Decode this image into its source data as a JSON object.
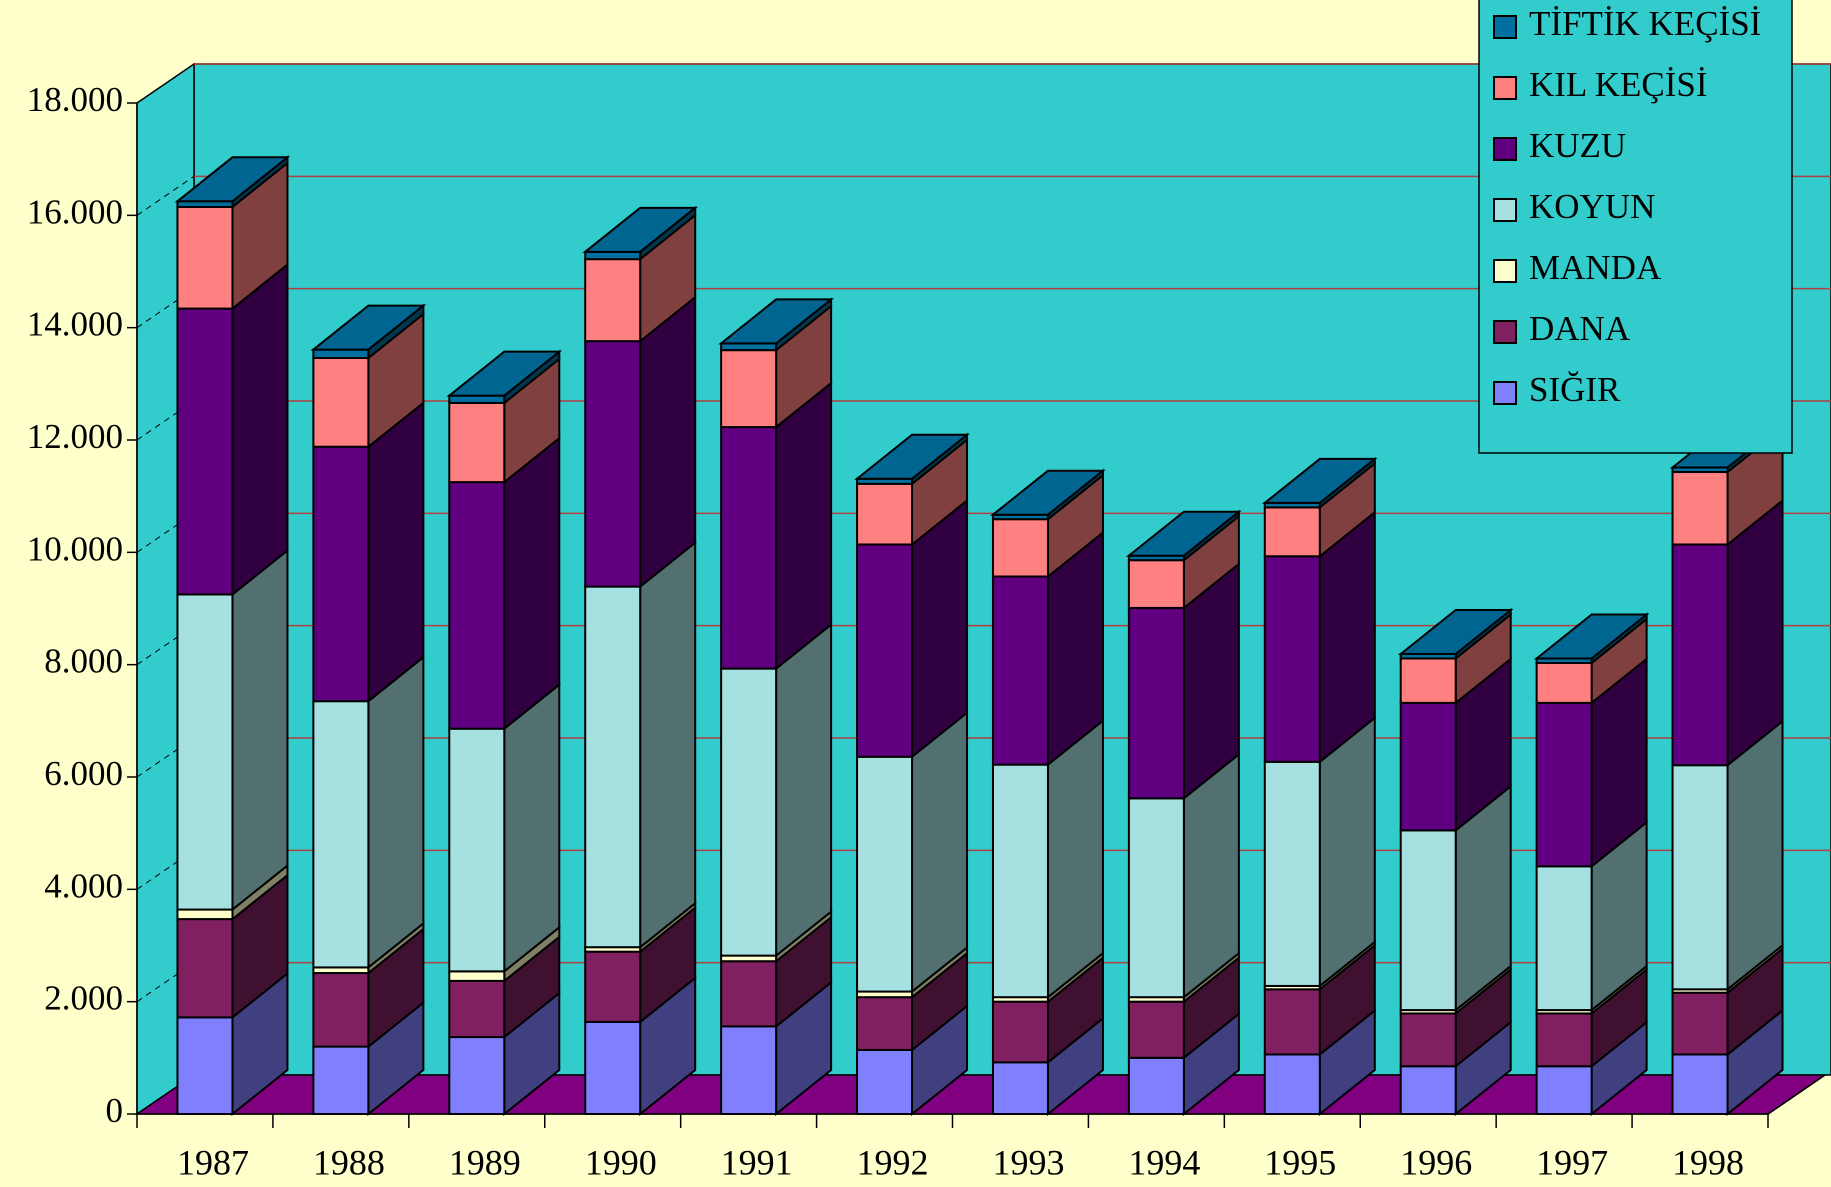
{
  "chart_data": {
    "type": "bar3d_stacked",
    "categories": [
      "1987",
      "1988",
      "1989",
      "1990",
      "1991",
      "1992",
      "1993",
      "1994",
      "1995",
      "1996",
      "1997",
      "1998"
    ],
    "series": [
      {
        "name": "SIĞIR",
        "color": "#8080ff",
        "values": [
          1720,
          1200,
          1370,
          1640,
          1560,
          1140,
          920,
          1000,
          1060,
          850,
          850,
          1060
        ]
      },
      {
        "name": "DANA",
        "color": "#802060",
        "values": [
          1750,
          1310,
          1000,
          1250,
          1160,
          940,
          1080,
          1000,
          1160,
          940,
          940,
          1100
        ]
      },
      {
        "name": "MANDA",
        "color": "#ffffcc",
        "values": [
          170,
          100,
          170,
          80,
          100,
          100,
          80,
          80,
          60,
          60,
          60,
          60
        ]
      },
      {
        "name": "KOYUN",
        "color": "#a6e0e0",
        "values": [
          5610,
          4740,
          4320,
          6420,
          5110,
          4180,
          4140,
          3540,
          3990,
          3200,
          2560,
          3990
        ]
      },
      {
        "name": "KUZU",
        "color": "#600080",
        "values": [
          5090,
          4530,
          4390,
          4370,
          4300,
          3780,
          3350,
          3390,
          3660,
          2270,
          2910,
          3930
        ]
      },
      {
        "name": "KIL KEÇİSİ",
        "color": "#ff8080",
        "values": [
          1810,
          1580,
          1410,
          1460,
          1370,
          1080,
          1020,
          850,
          870,
          790,
          710,
          1290
        ]
      },
      {
        "name": "TİFTİK KEÇİSİ",
        "color": "#0070a0",
        "values": [
          100,
          150,
          130,
          130,
          120,
          90,
          80,
          80,
          80,
          80,
          80,
          80
        ]
      }
    ],
    "ylim": [
      0,
      18000
    ],
    "yticks": [
      0,
      {
        "value": 2000,
        "label": "2.000"
      },
      {
        "value": 4000,
        "label": "4.000"
      },
      {
        "value": 6000,
        "label": "6.000"
      },
      {
        "value": 8000,
        "label": "8.000"
      },
      {
        "value": 10000,
        "label": "10.000"
      },
      {
        "value": 12000,
        "label": "12.000"
      },
      {
        "value": 14000,
        "label": "14.000"
      },
      {
        "value": 16000,
        "label": "16.000"
      },
      {
        "value": 18000,
        "label": "18.000"
      }
    ],
    "grid": true,
    "legend": "top-right",
    "wall_color": "#33cccc",
    "floor_color": "#800080",
    "background": "#ffffcc",
    "grid_color": "#b04040"
  }
}
